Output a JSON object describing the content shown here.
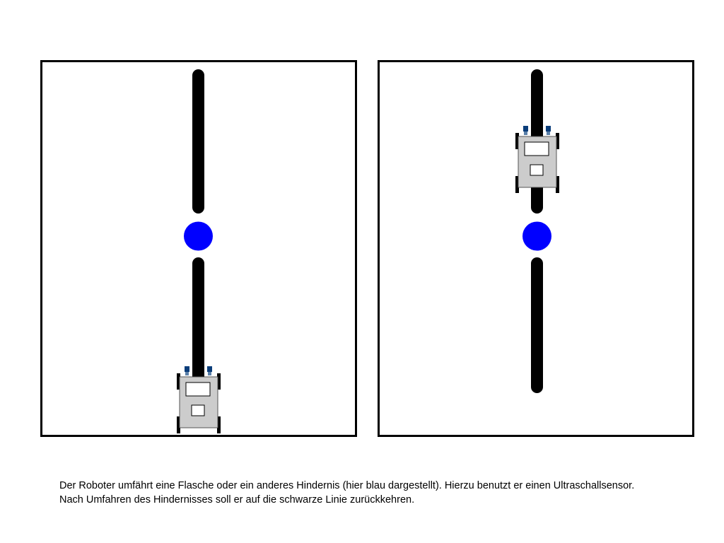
{
  "colors": {
    "background": "#ffffff",
    "frame": "#000000",
    "line": "#000000",
    "obstacle": "#0000ff",
    "robot_body": "#cccccc",
    "sensor": "#0a3d7a"
  },
  "panels": [
    {
      "id": "left",
      "robot_position": "bottom-of-line"
    },
    {
      "id": "right",
      "robot_position": "before-obstacle"
    }
  ],
  "caption": {
    "line1": "Der Roboter umfährt eine Flasche oder ein anderes Hindernis (hier blau dargestellt). Hierzu benutzt er einen Ultraschallsensor.",
    "line2": "Nach Umfahren des Hindernisses soll er auf die schwarze Linie zurückkehren."
  }
}
